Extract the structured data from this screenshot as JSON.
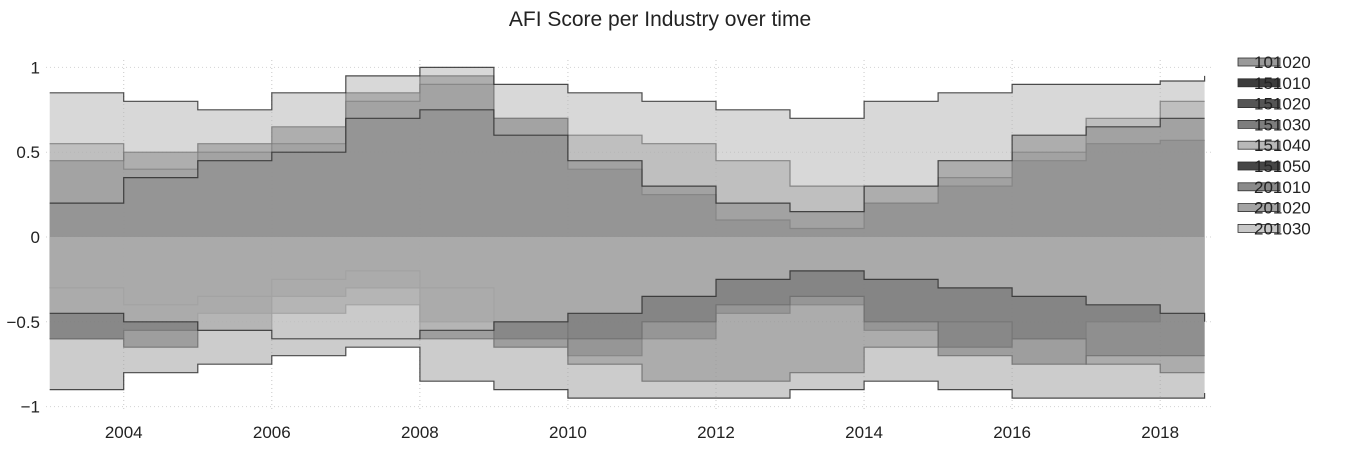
{
  "chart_data": {
    "type": "area",
    "title": "AFI Score per Industry over time",
    "xlabel": "",
    "ylabel": "",
    "xlim": [
      2002.95,
      2018.7
    ],
    "ylim": [
      -1.02,
      1.02
    ],
    "x_ticks": [
      {
        "value": 2004,
        "label": "2004"
      },
      {
        "value": 2006,
        "label": "2006"
      },
      {
        "value": 2008,
        "label": "2008"
      },
      {
        "value": 2010,
        "label": "2010"
      },
      {
        "value": 2012,
        "label": "2012"
      },
      {
        "value": 2014,
        "label": "2014"
      },
      {
        "value": 2016,
        "label": "2016"
      },
      {
        "value": 2018,
        "label": "2018"
      }
    ],
    "y_ticks": [
      {
        "value": 1,
        "label": "1"
      },
      {
        "value": 0.5,
        "label": "0.5"
      },
      {
        "value": 0,
        "label": "0"
      },
      {
        "value": -0.5,
        "label": "−0.5"
      },
      {
        "value": -1,
        "label": "−1"
      }
    ],
    "grid": true,
    "legend_position": "right",
    "x": [
      2003,
      2004,
      2005,
      2006,
      2007,
      2008,
      2009,
      2010,
      2011,
      2012,
      2013,
      2014,
      2015,
      2016,
      2017,
      2018,
      2018.6
    ],
    "series": [
      {
        "name": "101020",
        "color": "#9a9a9a",
        "values": [
          0.55,
          0.4,
          0.5,
          0.55,
          0.8,
          0.9,
          0.7,
          0.6,
          0.55,
          0.45,
          0.3,
          0.2,
          0.35,
          0.5,
          0.7,
          0.8,
          0.8
        ]
      },
      {
        "name": "151010",
        "color": "#3c3c3c",
        "values": [
          -0.6,
          -0.55,
          -0.45,
          -0.35,
          -0.3,
          -0.5,
          -0.6,
          -0.7,
          -0.6,
          -0.45,
          -0.4,
          -0.55,
          -0.65,
          -0.6,
          -0.5,
          -0.45,
          -0.45
        ]
      },
      {
        "name": "151020",
        "color": "#555555",
        "values": [
          0.45,
          0.5,
          0.55,
          0.65,
          0.85,
          0.95,
          0.7,
          0.4,
          0.25,
          0.1,
          0.05,
          0.2,
          0.3,
          0.45,
          0.55,
          0.57,
          0.57
        ]
      },
      {
        "name": "151030",
        "color": "#7d7d7d",
        "values": [
          -0.3,
          -0.4,
          -0.35,
          -0.25,
          -0.2,
          -0.3,
          -0.5,
          -0.75,
          -0.85,
          -0.85,
          -0.8,
          -0.65,
          -0.5,
          -0.6,
          -0.75,
          -0.8,
          -0.8
        ]
      },
      {
        "name": "151040",
        "color": "#b8b8b8",
        "values": [
          0.85,
          0.8,
          0.75,
          0.85,
          0.95,
          1.0,
          0.9,
          0.85,
          0.8,
          0.75,
          0.7,
          0.8,
          0.85,
          0.9,
          0.9,
          0.92,
          0.95
        ]
      },
      {
        "name": "151050",
        "color": "#464646",
        "values": [
          -0.6,
          -0.65,
          -0.55,
          -0.45,
          -0.4,
          -0.6,
          -0.65,
          -0.6,
          -0.5,
          -0.4,
          -0.35,
          -0.5,
          -0.7,
          -0.75,
          -0.7,
          -0.7,
          -0.7
        ]
      },
      {
        "name": "201010",
        "color": "#8a8a8a",
        "values": [
          0.2,
          0.35,
          0.45,
          0.5,
          0.7,
          0.75,
          0.6,
          0.45,
          0.3,
          0.2,
          0.15,
          0.3,
          0.45,
          0.6,
          0.65,
          0.7,
          0.7
        ]
      },
      {
        "name": "201020",
        "color": "#a3a3a3",
        "values": [
          -0.9,
          -0.8,
          -0.75,
          -0.7,
          -0.65,
          -0.85,
          -0.9,
          -0.95,
          -0.95,
          -0.95,
          -0.9,
          -0.85,
          -0.9,
          -0.95,
          -0.95,
          -0.95,
          -0.92
        ]
      },
      {
        "name": "201030",
        "color": "#c8c8c8",
        "values": [
          -0.45,
          -0.5,
          -0.55,
          -0.6,
          -0.6,
          -0.55,
          -0.5,
          -0.45,
          -0.35,
          -0.25,
          -0.2,
          -0.25,
          -0.3,
          -0.35,
          -0.4,
          -0.45,
          -0.5
        ]
      }
    ]
  }
}
